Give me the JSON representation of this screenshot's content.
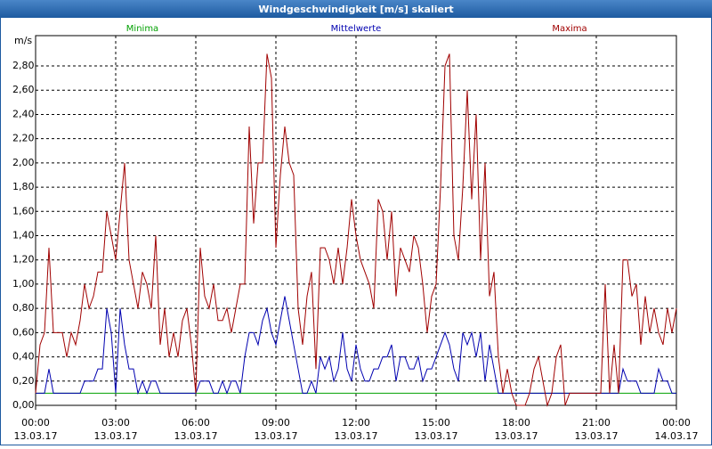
{
  "chart_data": {
    "type": "line",
    "title": "Windgeschwindigkeit [m/s] skaliert",
    "y_label": "m/s",
    "x": [
      0,
      10,
      20,
      30,
      40,
      50,
      60,
      70,
      80,
      90,
      100,
      110,
      120,
      130,
      140,
      150,
      160,
      170,
      180,
      190,
      200,
      210,
      220,
      230,
      240,
      250,
      260,
      270,
      280,
      290,
      300,
      310,
      320,
      330,
      340,
      350,
      360,
      370,
      380,
      390,
      400,
      410,
      420,
      430,
      440,
      450,
      460,
      470,
      480,
      490,
      500,
      510,
      520,
      530,
      540,
      550,
      560,
      570,
      580,
      590,
      600,
      610,
      620,
      630,
      640,
      650,
      660,
      670,
      680,
      690,
      700,
      710,
      720,
      730,
      740,
      750,
      760,
      770,
      780,
      790,
      800,
      810,
      820,
      830,
      840,
      850,
      860,
      870,
      880,
      890,
      900,
      910,
      920,
      930,
      940,
      950,
      960,
      970,
      980,
      990,
      1000,
      1010,
      1020,
      1030,
      1040,
      1050,
      1060,
      1070,
      1080,
      1090,
      1100,
      1110,
      1120,
      1130,
      1140,
      1150,
      1160,
      1170,
      1180,
      1190,
      1200,
      1210,
      1220,
      1230,
      1240,
      1250,
      1260,
      1270,
      1280,
      1290,
      1300,
      1310,
      1320,
      1330,
      1340,
      1350,
      1360,
      1370,
      1380,
      1390,
      1400,
      1410,
      1420,
      1430,
      1440
    ],
    "xlim": [
      0,
      1440
    ],
    "xticks": [
      {
        "value": 0,
        "label": [
          "00:00",
          "13.03.17"
        ]
      },
      {
        "value": 180,
        "label": [
          "03:00",
          "13.03.17"
        ]
      },
      {
        "value": 360,
        "label": [
          "06:00",
          "13.03.17"
        ]
      },
      {
        "value": 540,
        "label": [
          "09:00",
          "13.03.17"
        ]
      },
      {
        "value": 720,
        "label": [
          "12:00",
          "13.03.17"
        ]
      },
      {
        "value": 900,
        "label": [
          "15:00",
          "13.03.17"
        ]
      },
      {
        "value": 1080,
        "label": [
          "18:00",
          "13.03.17"
        ]
      },
      {
        "value": 1260,
        "label": [
          "21:00",
          "13.03.17"
        ]
      },
      {
        "value": 1440,
        "label": [
          "00:00",
          "14.03.17"
        ]
      }
    ],
    "ylim": [
      0,
      3.05
    ],
    "yticks": [
      {
        "value": 0,
        "label": "0,00"
      },
      {
        "value": 0.2,
        "label": "0,20"
      },
      {
        "value": 0.4,
        "label": "0,40"
      },
      {
        "value": 0.6,
        "label": "0,60"
      },
      {
        "value": 0.8,
        "label": "0,80"
      },
      {
        "value": 1.0,
        "label": "1,00"
      },
      {
        "value": 1.2,
        "label": "1,20"
      },
      {
        "value": 1.4,
        "label": "1,40"
      },
      {
        "value": 1.6,
        "label": "1,60"
      },
      {
        "value": 1.8,
        "label": "1,80"
      },
      {
        "value": 2.0,
        "label": "2,00"
      },
      {
        "value": 2.2,
        "label": "2,20"
      },
      {
        "value": 2.4,
        "label": "2,40"
      },
      {
        "value": 2.6,
        "label": "2,60"
      },
      {
        "value": 2.8,
        "label": "2,80"
      }
    ],
    "grid": true,
    "series": [
      {
        "name": "Minima",
        "color": "#00a000",
        "values": [
          0.1,
          0.1,
          0.1,
          0.1,
          0.1,
          0.1,
          0.1,
          0.1,
          0.1,
          0.1,
          0.1,
          0.1,
          0.1,
          0.1,
          0.1,
          0.1,
          0.1,
          0.1,
          0.1,
          0.1,
          0.1,
          0.1,
          0.1,
          0.1,
          0.1,
          0.1,
          0.1,
          0.1,
          0.1,
          0.1,
          0.1,
          0.1,
          0.1,
          0.1,
          0.1,
          0.1,
          0.1,
          0.1,
          0.1,
          0.1,
          0.1,
          0.1,
          0.1,
          0.1,
          0.1,
          0.1,
          0.1,
          0.1,
          0.1,
          0.1,
          0.1,
          0.1,
          0.1,
          0.1,
          0.1,
          0.1,
          0.1,
          0.1,
          0.1,
          0.1,
          0.1,
          0.1,
          0.1,
          0.1,
          0.1,
          0.1,
          0.1,
          0.1,
          0.1,
          0.1,
          0.1,
          0.1,
          0.1,
          0.1,
          0.1,
          0.1,
          0.1,
          0.1,
          0.1,
          0.1,
          0.1,
          0.1,
          0.1,
          0.1,
          0.1,
          0.1,
          0.1,
          0.1,
          0.1,
          0.1,
          0.1,
          0.1,
          0.1,
          0.1,
          0.1,
          0.1,
          0.1,
          0.1,
          0.1,
          0.1,
          0.1,
          0.1,
          0.1,
          0.1,
          0.1,
          0.1,
          0.1,
          0.1,
          0.1,
          0.1,
          0.1,
          0.1,
          0.1,
          0.1,
          0.1,
          0.1,
          0.1,
          0.1,
          0.1,
          0.1,
          0.1,
          0.1,
          0.1,
          0.1,
          0.1,
          0.1,
          0.1,
          0.1,
          0.1,
          0.1,
          0.1,
          0.1,
          0.1,
          0.1,
          0.1,
          0.1,
          0.1,
          0.1,
          0.1,
          0.1,
          0.1,
          0.1,
          0.1,
          0.1,
          0.1
        ]
      },
      {
        "name": "Mittelwerte",
        "color": "#0000b0",
        "values": [
          0.1,
          0.1,
          0.1,
          0.3,
          0.1,
          0.1,
          0.1,
          0.1,
          0.1,
          0.1,
          0.1,
          0.2,
          0.2,
          0.2,
          0.3,
          0.3,
          0.8,
          0.6,
          0.1,
          0.8,
          0.5,
          0.3,
          0.3,
          0.1,
          0.2,
          0.1,
          0.2,
          0.2,
          0.1,
          0.1,
          0.1,
          0.1,
          0.1,
          0.1,
          0.1,
          0.1,
          0.1,
          0.2,
          0.2,
          0.2,
          0.1,
          0.1,
          0.2,
          0.1,
          0.2,
          0.2,
          0.1,
          0.4,
          0.6,
          0.6,
          0.5,
          0.7,
          0.8,
          0.6,
          0.5,
          0.7,
          0.9,
          0.7,
          0.5,
          0.3,
          0.1,
          0.1,
          0.2,
          0.1,
          0.4,
          0.3,
          0.4,
          0.2,
          0.3,
          0.6,
          0.3,
          0.2,
          0.5,
          0.3,
          0.2,
          0.2,
          0.3,
          0.3,
          0.4,
          0.4,
          0.5,
          0.2,
          0.4,
          0.4,
          0.3,
          0.3,
          0.4,
          0.2,
          0.3,
          0.3,
          0.4,
          0.5,
          0.6,
          0.5,
          0.3,
          0.2,
          0.6,
          0.5,
          0.6,
          0.4,
          0.6,
          0.2,
          0.5,
          0.3,
          0.1,
          0.1,
          0.1,
          0.1,
          0.1,
          0.1,
          0.1,
          0.1,
          0.1,
          0.1,
          0.1,
          0.1,
          0.1,
          0.1,
          0.1,
          0.1,
          0.1,
          0.1,
          0.1,
          0.1,
          0.1,
          0.1,
          0.1,
          0.1,
          0.1,
          0.1,
          0.1,
          0.1,
          0.3,
          0.2,
          0.2,
          0.2,
          0.1,
          0.1,
          0.1,
          0.1,
          0.3,
          0.2,
          0.2,
          0.1,
          0.1
        ]
      },
      {
        "name": "Maxima",
        "color": "#a00000",
        "values": [
          0.1,
          0.5,
          0.6,
          1.3,
          0.6,
          0.6,
          0.6,
          0.4,
          0.6,
          0.5,
          0.7,
          1.0,
          0.8,
          0.9,
          1.1,
          1.1,
          1.6,
          1.4,
          1.2,
          1.6,
          2.0,
          1.2,
          1.0,
          0.8,
          1.1,
          1.0,
          0.8,
          1.4,
          0.5,
          0.8,
          0.4,
          0.6,
          0.4,
          0.7,
          0.8,
          0.5,
          0.1,
          1.3,
          0.9,
          0.8,
          1.0,
          0.7,
          0.7,
          0.8,
          0.6,
          0.8,
          1.0,
          1.0,
          2.3,
          1.5,
          2.0,
          2.0,
          2.9,
          2.7,
          1.3,
          1.9,
          2.3,
          2.0,
          1.9,
          0.8,
          0.5,
          0.9,
          1.1,
          0.3,
          1.3,
          1.3,
          1.2,
          1.0,
          1.3,
          1.0,
          1.3,
          1.7,
          1.4,
          1.2,
          1.1,
          1.0,
          0.8,
          1.7,
          1.6,
          1.2,
          1.6,
          0.9,
          1.3,
          1.2,
          1.1,
          1.4,
          1.3,
          1.0,
          0.6,
          0.9,
          1.0,
          1.8,
          2.8,
          2.9,
          1.4,
          1.2,
          1.8,
          2.6,
          1.7,
          2.4,
          1.2,
          2.0,
          0.9,
          1.1,
          0.4,
          0.1,
          0.3,
          0.1,
          0.0,
          0.0,
          0.0,
          0.1,
          0.3,
          0.4,
          0.2,
          0.0,
          0.1,
          0.4,
          0.5,
          0.0,
          0.1,
          0.1,
          0.1,
          0.1,
          0.1,
          0.1,
          0.1,
          0.1,
          1.0,
          0.1,
          0.5,
          0.1,
          1.2,
          1.2,
          0.9,
          1.0,
          0.5,
          0.9,
          0.6,
          0.8,
          0.6,
          0.5,
          0.8,
          0.6,
          0.8
        ]
      }
    ]
  }
}
